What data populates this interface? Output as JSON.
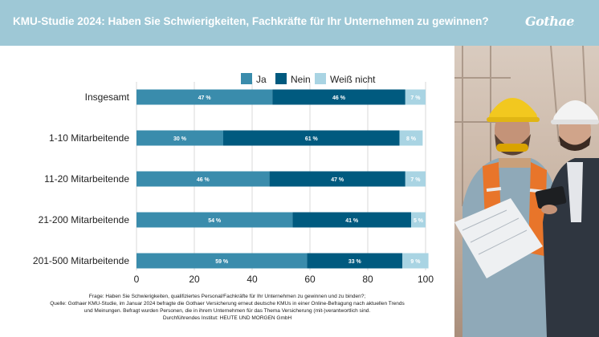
{
  "header": {
    "title": "KMU-Studie 2024: Haben Sie Schwierigkeiten, Fachkräfte für Ihr Unternehmen zu gewinnen?",
    "logo_text": "Gothaer"
  },
  "colors": {
    "header_bg": "#9ec8d6",
    "ja": "#3a8cac",
    "nein": "#005a7f",
    "weiss_nicht": "#a9d4e3"
  },
  "chart_data": {
    "type": "bar",
    "orientation": "horizontal",
    "stacked": true,
    "categories": [
      "Insgesamt",
      "1-10 Mitarbeitende",
      "11-20 Mitarbeitende",
      "21-200 Mitarbeitende",
      "201-500 Mitarbeitende"
    ],
    "series": [
      {
        "name": "Ja",
        "values": [
          47,
          30,
          46,
          54,
          59
        ],
        "labels": [
          "47 %",
          "30 %",
          "46 %",
          "54 %",
          "59 %"
        ]
      },
      {
        "name": "Nein",
        "values": [
          46,
          61,
          47,
          41,
          33
        ],
        "labels": [
          "46 %",
          "61 %",
          "47 %",
          "41 %",
          "33 %"
        ]
      },
      {
        "name": "Weiß nicht",
        "values": [
          7,
          8,
          7,
          5,
          9
        ],
        "labels": [
          "7 %",
          "8 %",
          "7 %",
          "5 %",
          "9 %"
        ]
      }
    ],
    "xlim": [
      0,
      100
    ],
    "xticks": [
      "0",
      "20",
      "40",
      "60",
      "80",
      "100"
    ],
    "legend_position": "top",
    "grid": true
  },
  "footnote": {
    "lines": [
      "Frage: Haben Sie Schwierigkeiten, qualifiziertes Personal/Fachkräfte für Ihr Unternehmen zu gewinnen und zu binden?;",
      "Quelle: Gothaer KMU-Studie, im Januar 2024 befragte die Gothaer Versicherung erneut deutsche KMUs in einer Online-Befragung nach aktuellen Trends",
      "und Meinungen. Befragt wurden Personen, die in ihrem Unternehmen für das Thema Versicherung (mit-)verantwortlich sind.",
      "Durchführendes Institut: HEUTE UND MORGEN GmbH"
    ]
  },
  "photo": {
    "description_icon": "construction-workers-photo"
  }
}
